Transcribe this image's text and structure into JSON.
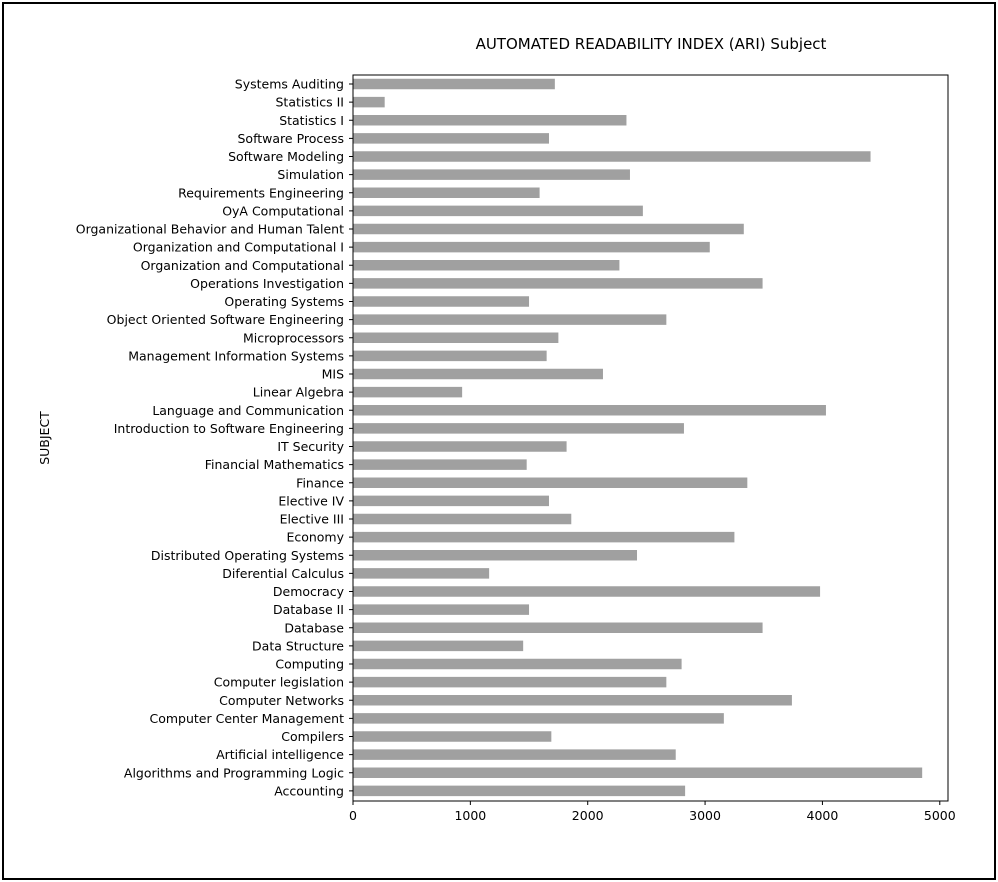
{
  "chart_data": {
    "type": "bar",
    "orientation": "horizontal",
    "title": "AUTOMATED READABILITY INDEX (ARI) Subject",
    "xlabel": "",
    "ylabel": "SUBJECT",
    "xlim": [
      0,
      5070
    ],
    "xticks": [
      0,
      1000,
      2000,
      3000,
      4000,
      5000
    ],
    "grid": false,
    "bar_color": "#a0a0a0",
    "categories": [
      "Systems Auditing",
      "Statistics II",
      "Statistics I",
      "Software Process",
      "Software Modeling",
      "Simulation",
      "Requirements Engineering",
      "OyA Computational",
      "Organizational Behavior and Human Talent",
      "Organization and Computational I",
      "Organization and Computational",
      "Operations Investigation",
      "Operating Systems",
      "Object Oriented Software Engineering",
      "Microprocessors",
      "Management Information Systems",
      "MIS",
      "Linear Algebra",
      "Language and Communication",
      "Introduction to Software Engineering",
      "IT Security",
      "Financial Mathematics",
      "Finance",
      "Elective IV",
      "Elective III",
      "Economy",
      "Distributed Operating Systems",
      "Diferential Calculus",
      "Democracy",
      "Database II",
      "Database",
      "Data Structure",
      "Computing",
      "Computer legislation",
      "Computer Networks",
      "Computer Center Management",
      "Compilers",
      "Artificial intelligence",
      "Algorithms and Programming Logic",
      "Accounting"
    ],
    "values": [
      1720,
      270,
      2330,
      1670,
      4410,
      2360,
      1590,
      2470,
      3330,
      3040,
      2270,
      3490,
      1500,
      2670,
      1750,
      1650,
      2130,
      930,
      4030,
      2820,
      1820,
      1480,
      3360,
      1670,
      1860,
      3250,
      2420,
      1160,
      3980,
      1500,
      3490,
      1450,
      2800,
      2670,
      3740,
      3160,
      1690,
      2750,
      4850,
      2830
    ]
  }
}
